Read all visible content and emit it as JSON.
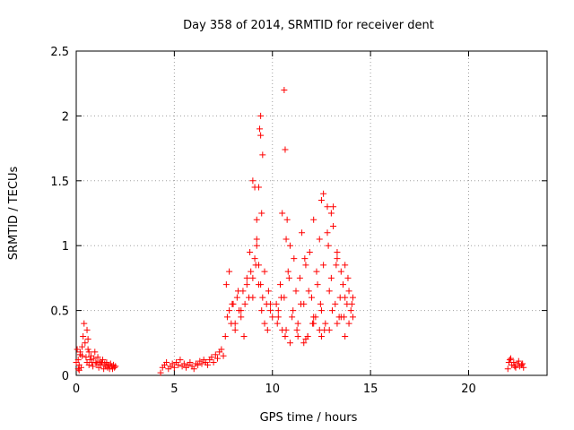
{
  "chart_data": {
    "type": "scatter",
    "title": "Day 358 of 2014, SRMTID for receiver dent",
    "xlabel": "GPS time / hours",
    "ylabel": "SRMTID / TECUs",
    "xlim": [
      0,
      24
    ],
    "ylim": [
      0,
      2.5
    ],
    "xticks": [
      "0",
      "5",
      "10",
      "15",
      "20"
    ],
    "yticks": [
      "0",
      "0.5",
      "1",
      "1.5",
      "2",
      "2.5"
    ],
    "grid": true,
    "marker": "+",
    "color": "#ff0000",
    "series": [
      {
        "name": "SRMTID",
        "x": [
          0.0,
          0.05,
          0.1,
          0.15,
          0.2,
          0.25,
          0.3,
          0.35,
          0.4,
          0.45,
          0.5,
          0.55,
          0.6,
          0.65,
          0.7,
          0.75,
          0.8,
          0.85,
          0.9,
          0.95,
          1.0,
          1.05,
          1.1,
          1.15,
          1.2,
          1.25,
          1.3,
          1.35,
          1.4,
          1.45,
          1.5,
          1.55,
          1.6,
          1.65,
          1.7,
          1.75,
          1.8,
          1.85,
          1.9,
          1.95,
          2.0,
          0.1,
          0.3,
          0.55,
          0.6,
          0.65,
          0.15,
          0.2,
          4.3,
          4.4,
          4.5,
          4.6,
          4.7,
          4.8,
          4.9,
          5.0,
          5.1,
          5.2,
          5.3,
          5.4,
          5.5,
          5.6,
          5.7,
          5.8,
          5.9,
          6.0,
          6.1,
          6.2,
          6.3,
          6.4,
          6.5,
          6.6,
          6.7,
          6.8,
          6.9,
          7.0,
          7.1,
          7.2,
          7.3,
          7.4,
          7.5,
          7.6,
          7.7,
          7.8,
          7.9,
          8.0,
          8.1,
          8.2,
          8.3,
          8.4,
          8.5,
          8.6,
          8.7,
          8.8,
          8.9,
          9.0,
          9.1,
          9.2,
          9.3,
          9.4,
          9.5,
          9.6,
          9.7,
          9.8,
          9.9,
          10.0,
          7.65,
          7.8,
          7.95,
          8.1,
          8.25,
          8.4,
          8.55,
          8.7,
          8.85,
          9.0,
          9.15,
          9.3,
          9.45,
          9.6,
          9.75,
          9.9,
          9.0,
          9.1,
          9.2,
          9.3,
          9.4,
          9.35,
          9.4,
          9.5,
          9.45,
          9.2,
          10.2,
          10.3,
          10.4,
          10.5,
          10.6,
          10.7,
          10.8,
          10.9,
          11.0,
          11.1,
          11.2,
          11.3,
          11.4,
          11.5,
          11.6,
          11.7,
          11.8,
          11.9,
          12.0,
          12.1,
          12.2,
          12.3,
          12.4,
          12.5,
          12.6,
          12.7,
          12.8,
          12.9,
          13.0,
          13.1,
          13.2,
          13.3,
          13.4,
          13.5,
          13.6,
          13.7,
          13.8,
          13.9,
          14.0,
          14.1,
          10.25,
          10.45,
          10.65,
          10.85,
          11.05,
          11.25,
          11.45,
          11.65,
          11.85,
          12.05,
          12.25,
          12.45,
          12.65,
          12.85,
          13.05,
          13.25,
          13.45,
          13.65,
          13.85,
          14.05,
          10.6,
          10.65,
          10.7,
          10.75,
          11.6,
          11.8,
          12.1,
          12.4,
          12.5,
          12.6,
          12.8,
          13.0,
          13.1,
          13.3,
          13.5,
          13.7,
          13.9,
          10.3,
          10.5,
          10.9,
          11.3,
          11.7,
          12.1,
          12.5,
          12.9,
          13.3,
          13.7,
          14.1,
          22.0,
          22.1,
          22.2,
          22.3,
          22.4,
          22.5,
          22.6,
          22.7,
          22.8,
          22.05,
          22.15,
          22.35,
          22.55,
          22.75
        ],
        "y": [
          0.1,
          0.2,
          0.12,
          0.08,
          0.18,
          0.06,
          0.15,
          0.3,
          0.4,
          0.25,
          0.14,
          0.1,
          0.2,
          0.08,
          0.12,
          0.15,
          0.1,
          0.07,
          0.13,
          0.18,
          0.1,
          0.09,
          0.14,
          0.06,
          0.11,
          0.08,
          0.1,
          0.12,
          0.05,
          0.09,
          0.07,
          0.1,
          0.06,
          0.08,
          0.05,
          0.09,
          0.07,
          0.05,
          0.08,
          0.06,
          0.07,
          0.05,
          0.22,
          0.35,
          0.28,
          0.18,
          0.04,
          0.16,
          0.02,
          0.06,
          0.08,
          0.1,
          0.05,
          0.07,
          0.09,
          0.06,
          0.1,
          0.08,
          0.12,
          0.07,
          0.09,
          0.06,
          0.08,
          0.1,
          0.07,
          0.05,
          0.09,
          0.08,
          0.11,
          0.09,
          0.12,
          0.1,
          0.08,
          0.12,
          0.14,
          0.1,
          0.16,
          0.13,
          0.18,
          0.2,
          0.15,
          0.3,
          0.45,
          0.5,
          0.4,
          0.55,
          0.35,
          0.6,
          0.5,
          0.45,
          0.65,
          0.55,
          0.7,
          0.6,
          0.8,
          0.75,
          0.9,
          1.0,
          0.85,
          0.7,
          0.6,
          0.8,
          0.55,
          0.65,
          0.5,
          0.45,
          0.7,
          0.8,
          0.55,
          0.4,
          0.65,
          0.5,
          0.3,
          0.75,
          0.95,
          0.6,
          0.85,
          0.7,
          0.5,
          0.4,
          0.35,
          0.55,
          1.5,
          1.45,
          1.2,
          1.45,
          2.0,
          1.9,
          1.85,
          1.7,
          1.25,
          1.05,
          0.55,
          0.5,
          0.7,
          1.25,
          0.6,
          0.35,
          0.8,
          1.0,
          0.45,
          0.9,
          0.65,
          0.4,
          0.75,
          1.1,
          0.55,
          0.85,
          0.3,
          0.95,
          0.6,
          1.2,
          0.45,
          0.7,
          1.05,
          0.5,
          0.85,
          0.4,
          1.3,
          0.65,
          0.75,
          1.15,
          0.55,
          0.9,
          0.45,
          0.8,
          0.7,
          0.6,
          0.55,
          0.65,
          0.5,
          0.6,
          0.4,
          0.6,
          0.3,
          0.75,
          0.5,
          0.35,
          0.55,
          0.9,
          0.65,
          0.4,
          0.8,
          0.55,
          0.35,
          1.0,
          0.5,
          0.85,
          0.6,
          0.45,
          0.75,
          0.55,
          2.2,
          1.74,
          1.05,
          1.2,
          0.25,
          0.3,
          0.45,
          0.35,
          1.35,
          1.4,
          1.1,
          1.25,
          1.3,
          0.95,
          0.45,
          0.85,
          0.4,
          0.45,
          0.35,
          0.25,
          0.3,
          0.28,
          0.4,
          0.3,
          0.35,
          0.4,
          0.3,
          0.45,
          0.05,
          0.12,
          0.08,
          0.1,
          0.06,
          0.09,
          0.07,
          0.08,
          0.06,
          0.1,
          0.13,
          0.07,
          0.11,
          0.09
        ]
      }
    ]
  }
}
